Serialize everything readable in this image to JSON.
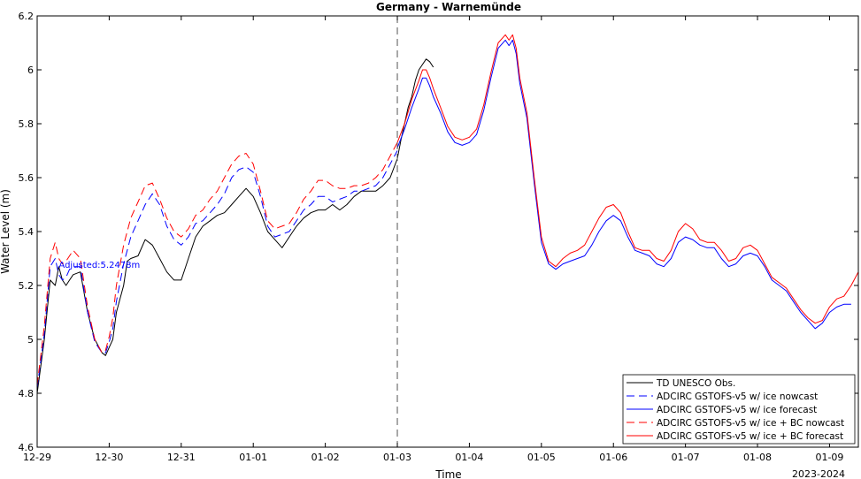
{
  "chart_data": {
    "type": "line",
    "title": "Germany - Warnemünde",
    "xlabel": "Time",
    "ylabel": "Water Level (m)",
    "x_sublabel": "2023-2024",
    "x_unit": "days since 12-29 00:00",
    "xlim": [
      0,
      11.4
    ],
    "ylim": [
      4.6,
      6.2
    ],
    "x_ticks": [
      {
        "value": 0,
        "label": "12-29"
      },
      {
        "value": 1,
        "label": "12-30"
      },
      {
        "value": 2,
        "label": "12-31"
      },
      {
        "value": 3,
        "label": "01-01"
      },
      {
        "value": 4,
        "label": "01-02"
      },
      {
        "value": 5,
        "label": "01-03"
      },
      {
        "value": 6,
        "label": "01-04"
      },
      {
        "value": 7,
        "label": "01-05"
      },
      {
        "value": 8,
        "label": "01-06"
      },
      {
        "value": 9,
        "label": "01-07"
      },
      {
        "value": 10,
        "label": "01-08"
      },
      {
        "value": 11,
        "label": "01-09"
      }
    ],
    "y_ticks": [
      4.6,
      4.8,
      5.0,
      5.2,
      5.4,
      5.6,
      5.8,
      6.0,
      6.2
    ],
    "y_tick_labels": [
      "4.6",
      "4.8",
      "5",
      "5.2",
      "5.4",
      "5.6",
      "5.8",
      "6",
      "6.2"
    ],
    "vline_x": 5,
    "annotation": {
      "text": "Adjusted:5.2478m",
      "x": 0.3,
      "y": 5.265
    },
    "legend_position": "bottom-right",
    "grid": false,
    "series": [
      {
        "name": "TD UNESCO Obs.",
        "color": "#000000",
        "dash": "",
        "x": [
          0.0,
          0.1,
          0.18,
          0.25,
          0.3,
          0.35,
          0.4,
          0.45,
          0.5,
          0.6,
          0.7,
          0.8,
          0.9,
          0.95,
          1.0,
          1.05,
          1.1,
          1.2,
          1.25,
          1.3,
          1.4,
          1.5,
          1.6,
          1.7,
          1.8,
          1.9,
          2.0,
          2.1,
          2.2,
          2.3,
          2.4,
          2.5,
          2.6,
          2.7,
          2.8,
          2.9,
          3.0,
          3.1,
          3.2,
          3.3,
          3.4,
          3.5,
          3.6,
          3.7,
          3.8,
          3.9,
          4.0,
          4.1,
          4.2,
          4.3,
          4.4,
          4.5,
          4.6,
          4.7,
          4.8,
          4.9,
          5.0,
          5.05,
          5.1,
          5.15,
          5.2,
          5.25,
          5.3,
          5.35,
          5.4,
          5.45,
          5.5
        ],
        "y": [
          4.8,
          5.0,
          5.22,
          5.2,
          5.27,
          5.22,
          5.2,
          5.22,
          5.24,
          5.25,
          5.1,
          5.0,
          4.95,
          4.94,
          4.97,
          5.0,
          5.1,
          5.2,
          5.29,
          5.3,
          5.31,
          5.37,
          5.35,
          5.3,
          5.25,
          5.22,
          5.22,
          5.3,
          5.38,
          5.42,
          5.44,
          5.46,
          5.47,
          5.5,
          5.53,
          5.56,
          5.53,
          5.47,
          5.4,
          5.37,
          5.34,
          5.38,
          5.42,
          5.45,
          5.47,
          5.48,
          5.48,
          5.5,
          5.48,
          5.5,
          5.53,
          5.55,
          5.55,
          5.55,
          5.57,
          5.6,
          5.67,
          5.74,
          5.8,
          5.86,
          5.9,
          5.96,
          6.0,
          6.02,
          6.04,
          6.03,
          6.01
        ]
      },
      {
        "name": "ADCIRC GSTOFS-v5 w/ ice nowcast",
        "color": "#0000ff",
        "dash": "9,5",
        "x": [
          0.0,
          0.1,
          0.18,
          0.25,
          0.3,
          0.35,
          0.4,
          0.45,
          0.5,
          0.6,
          0.7,
          0.8,
          0.9,
          0.95,
          1.0,
          1.05,
          1.1,
          1.2,
          1.3,
          1.4,
          1.5,
          1.6,
          1.7,
          1.8,
          1.9,
          2.0,
          2.1,
          2.2,
          2.3,
          2.4,
          2.5,
          2.6,
          2.7,
          2.8,
          2.9,
          3.0,
          3.1,
          3.2,
          3.3,
          3.4,
          3.5,
          3.6,
          3.7,
          3.8,
          3.9,
          4.0,
          4.1,
          4.2,
          4.3,
          4.4,
          4.5,
          4.6,
          4.7,
          4.8,
          4.9,
          5.0
        ],
        "y": [
          4.82,
          5.02,
          5.27,
          5.3,
          5.24,
          5.22,
          5.23,
          5.26,
          5.27,
          5.27,
          5.1,
          4.99,
          4.95,
          4.95,
          4.99,
          5.04,
          5.14,
          5.28,
          5.38,
          5.44,
          5.5,
          5.54,
          5.5,
          5.42,
          5.37,
          5.35,
          5.38,
          5.43,
          5.44,
          5.47,
          5.5,
          5.54,
          5.6,
          5.63,
          5.64,
          5.62,
          5.53,
          5.42,
          5.38,
          5.39,
          5.4,
          5.44,
          5.48,
          5.5,
          5.53,
          5.53,
          5.51,
          5.52,
          5.53,
          5.55,
          5.55,
          5.56,
          5.57,
          5.6,
          5.65,
          5.7
        ]
      },
      {
        "name": "ADCIRC GSTOFS-v5 w/ ice forecast",
        "color": "#0000ff",
        "dash": "",
        "x": [
          5.0,
          5.1,
          5.2,
          5.3,
          5.35,
          5.4,
          5.45,
          5.5,
          5.6,
          5.7,
          5.8,
          5.9,
          6.0,
          6.1,
          6.2,
          6.3,
          6.4,
          6.5,
          6.55,
          6.6,
          6.65,
          6.7,
          6.8,
          6.9,
          7.0,
          7.1,
          7.2,
          7.3,
          7.4,
          7.5,
          7.6,
          7.7,
          7.8,
          7.9,
          8.0,
          8.1,
          8.2,
          8.3,
          8.4,
          8.5,
          8.6,
          8.7,
          8.8,
          8.9,
          9.0,
          9.1,
          9.2,
          9.3,
          9.4,
          9.5,
          9.6,
          9.7,
          9.8,
          9.9,
          10.0,
          10.1,
          10.2,
          10.3,
          10.4,
          10.5,
          10.6,
          10.7,
          10.8,
          10.9,
          11.0,
          11.1,
          11.2,
          11.3
        ],
        "y": [
          5.71,
          5.78,
          5.86,
          5.93,
          5.97,
          5.97,
          5.94,
          5.9,
          5.84,
          5.77,
          5.73,
          5.72,
          5.73,
          5.76,
          5.85,
          5.97,
          6.08,
          6.11,
          6.09,
          6.11,
          6.06,
          5.95,
          5.82,
          5.58,
          5.36,
          5.28,
          5.26,
          5.28,
          5.29,
          5.3,
          5.31,
          5.35,
          5.4,
          5.44,
          5.46,
          5.44,
          5.38,
          5.33,
          5.32,
          5.31,
          5.28,
          5.27,
          5.3,
          5.36,
          5.38,
          5.37,
          5.35,
          5.34,
          5.34,
          5.3,
          5.27,
          5.28,
          5.31,
          5.32,
          5.31,
          5.27,
          5.22,
          5.2,
          5.18,
          5.14,
          5.1,
          5.07,
          5.04,
          5.06,
          5.1,
          5.12,
          5.13,
          5.13
        ]
      },
      {
        "name": "ADCIRC GSTOFS-v5 w/ ice + BC nowcast",
        "color": "#ff0000",
        "dash": "9,5",
        "x": [
          0.0,
          0.1,
          0.18,
          0.25,
          0.3,
          0.35,
          0.4,
          0.45,
          0.5,
          0.6,
          0.7,
          0.8,
          0.9,
          0.95,
          1.0,
          1.05,
          1.1,
          1.2,
          1.3,
          1.4,
          1.5,
          1.6,
          1.7,
          1.8,
          1.9,
          2.0,
          2.1,
          2.2,
          2.3,
          2.4,
          2.5,
          2.6,
          2.7,
          2.8,
          2.9,
          3.0,
          3.1,
          3.2,
          3.3,
          3.4,
          3.5,
          3.6,
          3.7,
          3.8,
          3.9,
          4.0,
          4.1,
          4.2,
          4.3,
          4.4,
          4.5,
          4.6,
          4.7,
          4.8,
          4.9,
          5.0
        ],
        "y": [
          4.83,
          5.05,
          5.3,
          5.36,
          5.3,
          5.28,
          5.29,
          5.31,
          5.33,
          5.3,
          5.12,
          5.0,
          4.95,
          4.96,
          5.01,
          5.08,
          5.2,
          5.35,
          5.45,
          5.51,
          5.57,
          5.58,
          5.52,
          5.45,
          5.4,
          5.38,
          5.41,
          5.46,
          5.48,
          5.52,
          5.55,
          5.6,
          5.65,
          5.68,
          5.69,
          5.65,
          5.55,
          5.44,
          5.41,
          5.42,
          5.43,
          5.47,
          5.52,
          5.55,
          5.59,
          5.59,
          5.57,
          5.56,
          5.56,
          5.57,
          5.57,
          5.58,
          5.6,
          5.63,
          5.68,
          5.73
        ]
      },
      {
        "name": "ADCIRC GSTOFS-v5 w/ ice + BC forecast",
        "color": "#ff0000",
        "dash": "",
        "x": [
          5.0,
          5.1,
          5.2,
          5.3,
          5.35,
          5.4,
          5.45,
          5.5,
          5.6,
          5.7,
          5.8,
          5.9,
          6.0,
          6.1,
          6.2,
          6.3,
          6.4,
          6.5,
          6.55,
          6.6,
          6.65,
          6.7,
          6.8,
          6.9,
          7.0,
          7.1,
          7.2,
          7.3,
          7.4,
          7.5,
          7.6,
          7.7,
          7.8,
          7.9,
          8.0,
          8.1,
          8.2,
          8.3,
          8.4,
          8.5,
          8.6,
          8.7,
          8.8,
          8.9,
          9.0,
          9.1,
          9.2,
          9.3,
          9.4,
          9.5,
          9.6,
          9.7,
          9.8,
          9.9,
          10.0,
          10.1,
          10.2,
          10.3,
          10.4,
          10.5,
          10.6,
          10.7,
          10.8,
          10.9,
          11.0,
          11.1,
          11.2,
          11.3,
          11.4
        ],
        "y": [
          5.73,
          5.8,
          5.89,
          5.96,
          6.0,
          6.0,
          5.97,
          5.93,
          5.86,
          5.79,
          5.75,
          5.74,
          5.75,
          5.78,
          5.87,
          5.99,
          6.1,
          6.13,
          6.11,
          6.13,
          6.08,
          5.97,
          5.84,
          5.6,
          5.38,
          5.29,
          5.27,
          5.3,
          5.32,
          5.33,
          5.35,
          5.4,
          5.45,
          5.49,
          5.5,
          5.47,
          5.4,
          5.34,
          5.33,
          5.33,
          5.3,
          5.29,
          5.33,
          5.4,
          5.43,
          5.41,
          5.37,
          5.36,
          5.36,
          5.33,
          5.29,
          5.3,
          5.34,
          5.35,
          5.33,
          5.28,
          5.23,
          5.21,
          5.19,
          5.15,
          5.11,
          5.08,
          5.06,
          5.07,
          5.12,
          5.15,
          5.16,
          5.2,
          5.25
        ]
      }
    ]
  }
}
